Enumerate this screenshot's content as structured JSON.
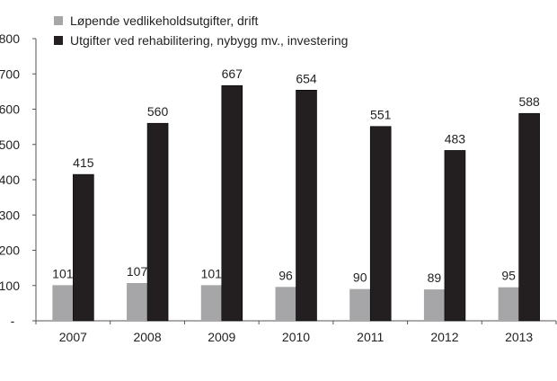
{
  "chart_data": {
    "type": "bar",
    "title": "",
    "xlabel": "",
    "ylabel": "",
    "ylim": [
      0,
      800
    ],
    "yticks": [
      "-",
      "100",
      "200",
      "300",
      "400",
      "500",
      "600",
      "700",
      "800"
    ],
    "grid": false,
    "legend_position": "top-left",
    "categories": [
      "2007",
      "2008",
      "2009",
      "2010",
      "2011",
      "2012",
      "2013"
    ],
    "series": [
      {
        "name": "Løpende vedlikeholdsutgifter, drift",
        "color": "#a6a6a8",
        "values": [
          101,
          107,
          101,
          96,
          90,
          89,
          95
        ]
      },
      {
        "name": "Utgifter ved rehabilitering, nybygg mv., investering",
        "color": "#231f20",
        "values": [
          415,
          560,
          667,
          654,
          551,
          483,
          588
        ]
      }
    ]
  },
  "legend": {
    "items": [
      {
        "label": "Løpende vedlikeholdsutgifter, drift",
        "color": "#a6a6a8"
      },
      {
        "label": "Utgifter ved rehabilitering, nybygg mv., investering",
        "color": "#231f20"
      }
    ]
  }
}
